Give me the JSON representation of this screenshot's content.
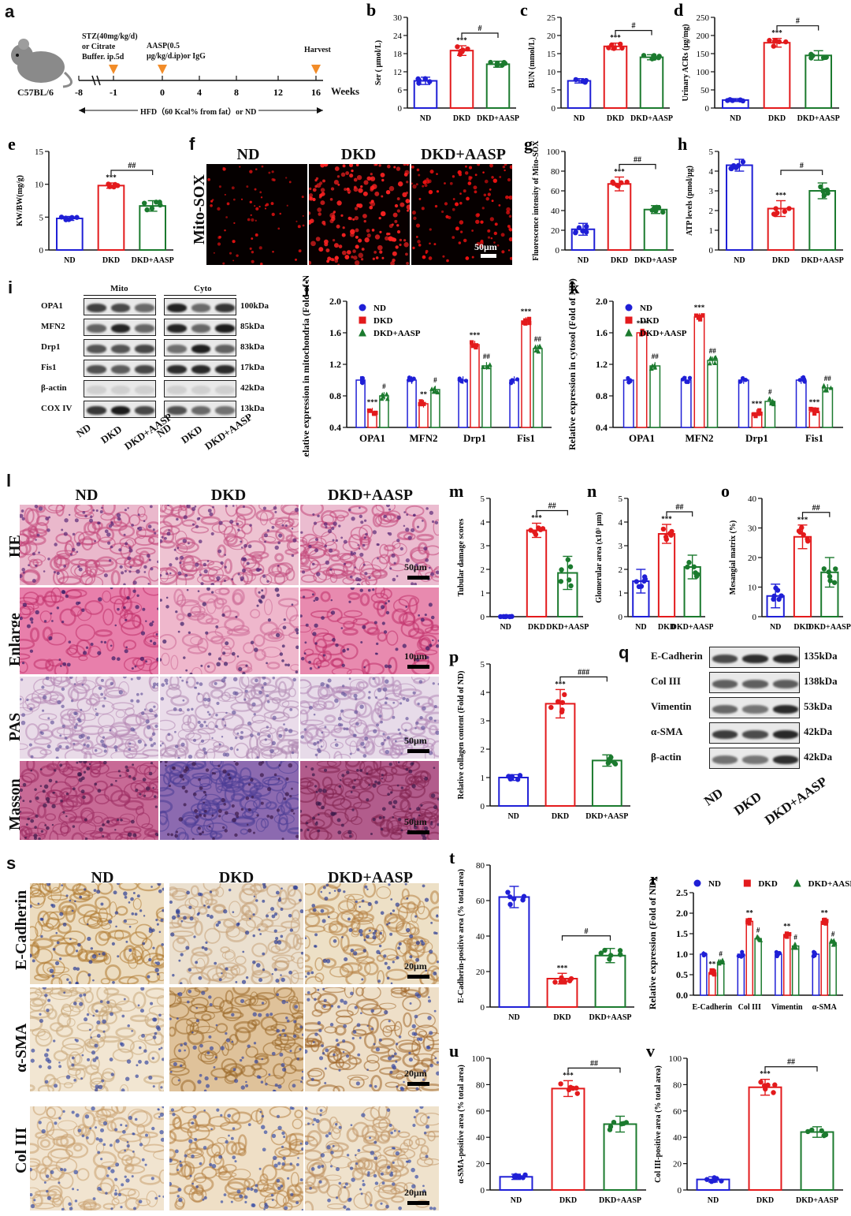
{
  "panels": {
    "a": {
      "letter": "a",
      "mouse_label": "C57BL/6",
      "stz_text": [
        "STZ(40mg/kg/d)",
        "or Citrate",
        "Buffer. ip.5d"
      ],
      "aasp_text": [
        "AASP(0.5",
        "μg/kg/d.ip)or IgG"
      ],
      "harvest_text": "Harvest",
      "timeline_ticks": [
        "-8",
        "-1",
        "0",
        "4",
        "8",
        "12",
        "16"
      ],
      "weeks_label": "Weeks",
      "hfd_text": "HFD（60 Kcal% from fat）or ND"
    },
    "f": {
      "letter": "f",
      "row_label": "Mito-SOX",
      "columns": [
        "ND",
        "DKD",
        "DKD+AASP"
      ],
      "scale": "50μm"
    },
    "i": {
      "letter": "i",
      "mito_label": "Mito",
      "cyto_label": "Cyto",
      "proteins": [
        "OPA1",
        "MFN2",
        "Drp1",
        "Fis1",
        "β-actin",
        "COX IV"
      ],
      "sizes": [
        "100kDa",
        "85kDa",
        "83kDa",
        "17kDa",
        "42kDa",
        "13kDa"
      ],
      "lanes": [
        "ND",
        "DKD",
        "DKD+AASP"
      ]
    },
    "l": {
      "letter": "l",
      "columns": [
        "ND",
        "DKD",
        "DKD+AASP"
      ],
      "rows": [
        "HE",
        "Enlarge",
        "PAS",
        "Masson"
      ],
      "scales": [
        "50μm",
        "10μm",
        "50μm",
        "50μm"
      ]
    },
    "q": {
      "letter": "q",
      "proteins": [
        "E-Cadherin",
        "Col III",
        "Vimentin",
        "α-SMA",
        "β-actin"
      ],
      "sizes": [
        "135kDa",
        "138kDa",
        "53kDa",
        "42kDa",
        "42kDa"
      ],
      "lanes": [
        "ND",
        "DKD",
        "DKD+AASP"
      ]
    },
    "s": {
      "letter": "s",
      "columns": [
        "ND",
        "DKD",
        "DKD+AASP"
      ],
      "rows": [
        "E-Cadherin",
        "α-SMA",
        "Col III"
      ],
      "scale": "20μm"
    }
  },
  "colors": {
    "ND": "#1f1fd6",
    "DKD": "#e31a1c",
    "DKD+AASP": "#1b7a2e"
  },
  "chart_data": [
    {
      "id": "b",
      "letter": "b",
      "type": "bar",
      "ylabel": "Ser ( μmol/L)",
      "categories": [
        "ND",
        "DKD",
        "DKD+AASP"
      ],
      "values": [
        9,
        19,
        14.5
      ],
      "errors": [
        1.2,
        1.6,
        1.0
      ],
      "ylim": [
        0,
        30
      ],
      "yticks": [
        "0",
        "6",
        "12",
        "18",
        "24",
        "30"
      ],
      "sig": [
        "",
        "***",
        ""
      ],
      "bracket": "#"
    },
    {
      "id": "c",
      "letter": "c",
      "type": "bar",
      "ylabel": "BUN (mmol/L)",
      "categories": [
        "ND",
        "DKD",
        "DKD+AASP"
      ],
      "values": [
        7.5,
        17,
        14
      ],
      "errors": [
        0.6,
        0.9,
        0.7
      ],
      "ylim": [
        0,
        25
      ],
      "yticks": [
        "0",
        "5",
        "10",
        "15",
        "20",
        "25"
      ],
      "sig": [
        "",
        "***",
        ""
      ],
      "bracket": "#"
    },
    {
      "id": "d",
      "letter": "d",
      "type": "bar",
      "ylabel": "Urinary ACRs (μg/mg)",
      "categories": [
        "ND",
        "DKD",
        "DKD+AASP"
      ],
      "values": [
        22,
        180,
        145
      ],
      "errors": [
        4,
        12,
        13
      ],
      "ylim": [
        0,
        250
      ],
      "yticks": [
        "0",
        "50",
        "100",
        "150",
        "200",
        "250"
      ],
      "sig": [
        "",
        "***",
        ""
      ],
      "bracket": "#"
    },
    {
      "id": "e",
      "letter": "e",
      "type": "bar",
      "ylabel": "KW/BW(mg/g)",
      "categories": [
        "ND",
        "DKD",
        "DKD+AASP"
      ],
      "values": [
        4.8,
        9.8,
        6.7
      ],
      "errors": [
        0.3,
        0.4,
        0.8
      ],
      "ylim": [
        0,
        15
      ],
      "yticks": [
        "0",
        "5",
        "10",
        "15"
      ],
      "sig": [
        "",
        "***",
        ""
      ],
      "bracket": "##"
    },
    {
      "id": "g",
      "letter": "g",
      "type": "bar",
      "ylabel": "Fluorescence intensity of Mito-SOX",
      "categories": [
        "ND",
        "DKD",
        "DKD+AASP"
      ],
      "values": [
        21,
        67,
        41
      ],
      "errors": [
        6,
        7,
        4
      ],
      "ylim": [
        0,
        100
      ],
      "yticks": [
        "0",
        "20",
        "40",
        "60",
        "80",
        "100"
      ],
      "sig": [
        "",
        "***",
        ""
      ],
      "bracket": "##"
    },
    {
      "id": "h",
      "letter": "h",
      "type": "bar",
      "ylabel": "ATP levels (pmol/μg)",
      "categories": [
        "ND",
        "DKD",
        "DKD+AASP"
      ],
      "values": [
        4.3,
        2.1,
        3.0
      ],
      "errors": [
        0.3,
        0.4,
        0.4
      ],
      "ylim": [
        0,
        5
      ],
      "yticks": [
        "0",
        "1",
        "2",
        "3",
        "4",
        "5"
      ],
      "sig": [
        "",
        "***",
        ""
      ],
      "bracket": "#"
    },
    {
      "id": "j",
      "letter": "j",
      "type": "bar",
      "ylabel": "Relative expression in mitochondria (Fold of ND)",
      "categories": [
        "OPA1",
        "MFN2",
        "Drp1",
        "Fis1"
      ],
      "series": [
        {
          "name": "ND",
          "values": [
            1.0,
            1.0,
            1.0,
            1.0
          ]
        },
        {
          "name": "DKD",
          "values": [
            0.6,
            0.7,
            1.45,
            1.75
          ]
        },
        {
          "name": "DKD+AASP",
          "values": [
            0.8,
            0.88,
            1.18,
            1.4
          ]
        }
      ],
      "ylim": [
        0.4,
        2.0
      ],
      "yticks": [
        "0.4",
        "0.8",
        "1.2",
        "1.6",
        "2.0"
      ],
      "sig_dkd": [
        "***",
        "**",
        "***",
        "***"
      ],
      "sig_aasp": [
        "#",
        "#",
        "##",
        "##"
      ]
    },
    {
      "id": "k",
      "letter": "k",
      "type": "bar",
      "ylabel": "Relative expression in cytosol (Fold of ND)",
      "categories": [
        "OPA1",
        "MFN2",
        "Drp1",
        "Fis1"
      ],
      "series": [
        {
          "name": "ND",
          "values": [
            1.0,
            1.0,
            1.0,
            1.0
          ]
        },
        {
          "name": "DKD",
          "values": [
            1.6,
            1.8,
            0.58,
            0.6
          ]
        },
        {
          "name": "DKD+AASP",
          "values": [
            1.18,
            1.25,
            0.73,
            0.9
          ]
        }
      ],
      "ylim": [
        0.4,
        2.0
      ],
      "yticks": [
        "0.4",
        "0.8",
        "1.2",
        "1.6",
        "2.0"
      ],
      "sig_dkd": [
        "***",
        "***",
        "***",
        "***"
      ],
      "sig_aasp": [
        "##",
        "##",
        "#",
        "##"
      ]
    },
    {
      "id": "m",
      "letter": "m",
      "type": "bar",
      "ylabel": "Tubular damage scores",
      "categories": [
        "ND",
        "DKD",
        "DKD+AASP"
      ],
      "values": [
        0,
        3.65,
        1.85
      ],
      "errors": [
        0,
        0.3,
        0.7
      ],
      "ylim": [
        0,
        5
      ],
      "yticks": [
        "0",
        "1",
        "2",
        "3",
        "4",
        "5"
      ],
      "sig": [
        "",
        "***",
        ""
      ],
      "bracket": "##"
    },
    {
      "id": "n",
      "letter": "n",
      "type": "bar",
      "ylabel": "Glomerular area (x10³ μm)",
      "categories": [
        "ND",
        "DKD",
        "DKD+AASP"
      ],
      "values": [
        1.5,
        3.5,
        2.1
      ],
      "errors": [
        0.5,
        0.4,
        0.5
      ],
      "ylim": [
        0,
        5
      ],
      "yticks": [
        "0",
        "1",
        "2",
        "3",
        "4",
        "5"
      ],
      "sig": [
        "",
        "***",
        ""
      ],
      "bracket": "##"
    },
    {
      "id": "o",
      "letter": "o",
      "type": "bar",
      "ylabel": "Mesangial matrix (%)",
      "categories": [
        "ND",
        "DKD",
        "DKD+AASP"
      ],
      "values": [
        7,
        27,
        15
      ],
      "errors": [
        4,
        4,
        5
      ],
      "ylim": [
        0,
        40
      ],
      "yticks": [
        "0",
        "10",
        "20",
        "30",
        "40"
      ],
      "sig": [
        "",
        "***",
        ""
      ],
      "bracket": "##"
    },
    {
      "id": "p",
      "letter": "p",
      "type": "bar",
      "ylabel": "Relative collagen content (Fold of ND)",
      "categories": [
        "ND",
        "DKD",
        "DKD+AASP"
      ],
      "values": [
        1.0,
        3.6,
        1.6
      ],
      "errors": [
        0.1,
        0.5,
        0.2
      ],
      "ylim": [
        0,
        5
      ],
      "yticks": [
        "0",
        "1",
        "2",
        "3",
        "4",
        "5"
      ],
      "sig": [
        "",
        "***",
        ""
      ],
      "bracket": "###"
    },
    {
      "id": "r",
      "letter": "r",
      "type": "bar",
      "ylabel": "Relative expression (Fold of ND)",
      "categories": [
        "E-Cadherin",
        "Col III",
        "Vimentin",
        "α-SMA"
      ],
      "series": [
        {
          "name": "ND",
          "values": [
            1.0,
            1.0,
            1.0,
            1.0
          ]
        },
        {
          "name": "DKD",
          "values": [
            0.55,
            1.8,
            1.47,
            1.8
          ]
        },
        {
          "name": "DKD+AASP",
          "values": [
            0.8,
            1.38,
            1.2,
            1.28
          ]
        }
      ],
      "ylim": [
        0,
        2.5
      ],
      "yticks": [
        "0.0",
        "0.5",
        "1.0",
        "1.5",
        "2.0",
        "2.5"
      ],
      "sig_dkd": [
        "**",
        "**",
        "**",
        "**"
      ],
      "sig_aasp": [
        "#",
        "#",
        "#",
        "#"
      ]
    },
    {
      "id": "t",
      "letter": "t",
      "type": "bar",
      "ylabel": "E-Cadherin-positive area (% total area)",
      "categories": [
        "ND",
        "DKD",
        "DKD+AASP"
      ],
      "values": [
        62,
        16,
        29
      ],
      "errors": [
        6,
        3,
        4
      ],
      "ylim": [
        0,
        80
      ],
      "yticks": [
        "0",
        "20",
        "40",
        "60",
        "80"
      ],
      "sig": [
        "",
        "***",
        ""
      ],
      "bracket": "#"
    },
    {
      "id": "u",
      "letter": "u",
      "type": "bar",
      "ylabel": "α-SMA-positive area (% total area)",
      "categories": [
        "ND",
        "DKD",
        "DKD+AASP"
      ],
      "values": [
        10,
        77,
        50
      ],
      "errors": [
        2,
        6,
        6
      ],
      "ylim": [
        0,
        100
      ],
      "yticks": [
        "0",
        "20",
        "40",
        "60",
        "80",
        "100"
      ],
      "sig": [
        "",
        "***",
        ""
      ],
      "bracket": "##"
    },
    {
      "id": "v",
      "letter": "v",
      "type": "bar",
      "ylabel": "Col III-positive area (% total area)",
      "categories": [
        "ND",
        "DKD",
        "DKD+AASP"
      ],
      "values": [
        8,
        78,
        44
      ],
      "errors": [
        2,
        6,
        4
      ],
      "ylim": [
        0,
        100
      ],
      "yticks": [
        "0",
        "20",
        "40",
        "60",
        "80",
        "100"
      ],
      "sig": [
        "",
        "***",
        ""
      ],
      "bracket": "##"
    }
  ]
}
